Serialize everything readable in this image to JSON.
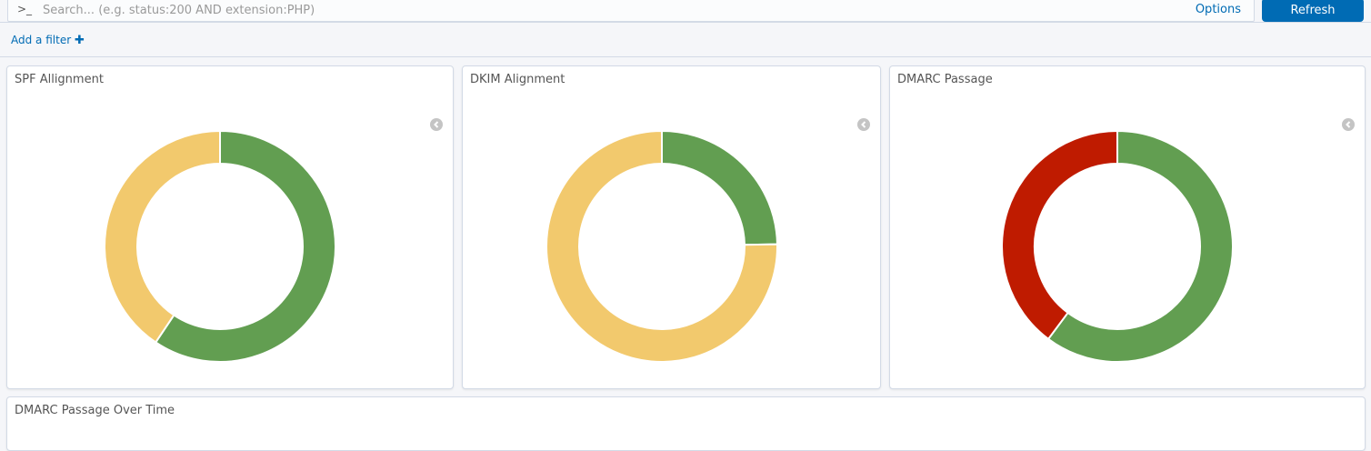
{
  "search": {
    "prompt": ">_",
    "placeholder": "Search... (e.g. status:200 AND extension:PHP)",
    "options_label": "Options",
    "refresh_label": "Refresh"
  },
  "filter": {
    "add_label": "Add a filter",
    "plus": "✚"
  },
  "panels": [
    {
      "title": "SPF Allignment"
    },
    {
      "title": "DKIM Alignment"
    },
    {
      "title": "DMARC Passage"
    },
    {
      "title": "DMARC Passage Over Time"
    }
  ],
  "chart_data": [
    {
      "type": "pie",
      "donut": true,
      "title": "SPF Allignment",
      "slices": [
        {
          "value": 59.4,
          "color": "#629e51"
        },
        {
          "value": 40.6,
          "color": "#f2c96d"
        }
      ]
    },
    {
      "type": "pie",
      "donut": true,
      "title": "DKIM Alignment",
      "slices": [
        {
          "value": 24.7,
          "color": "#629e51"
        },
        {
          "value": 75.3,
          "color": "#f2c96d"
        }
      ]
    },
    {
      "type": "pie",
      "donut": true,
      "title": "DMARC Passage",
      "slices": [
        {
          "value": 60.2,
          "color": "#629e51"
        },
        {
          "value": 39.8,
          "color": "#bf1b00"
        }
      ]
    }
  ]
}
